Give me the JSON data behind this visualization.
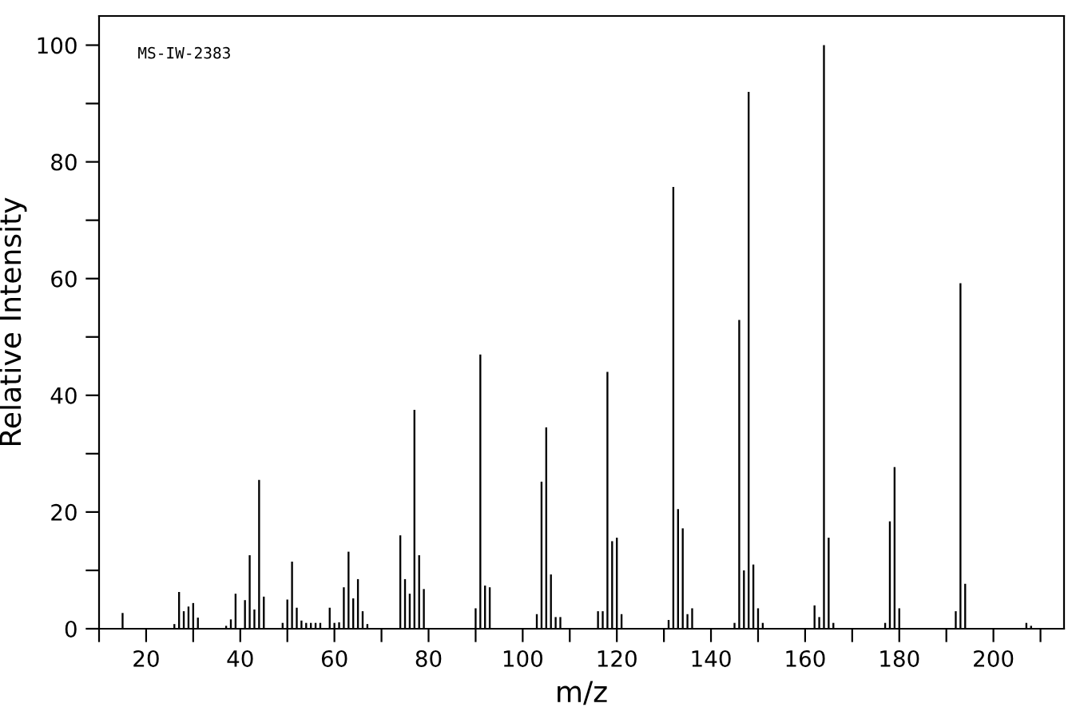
{
  "chart_data": {
    "type": "bar",
    "xlabel": "m/z",
    "ylabel": "Relative Intensity",
    "annotations": [
      "MS-IW-2383"
    ],
    "color": "#000000",
    "x": [
      15,
      26,
      27,
      28,
      29,
      30,
      31,
      37,
      38,
      39,
      41,
      42,
      43,
      44,
      45,
      49,
      50,
      51,
      52,
      53,
      54,
      55,
      56,
      57,
      59,
      60,
      61,
      62,
      63,
      64,
      65,
      66,
      67,
      74,
      75,
      76,
      77,
      78,
      79,
      90,
      91,
      92,
      93,
      103,
      104,
      105,
      106,
      107,
      108,
      116,
      117,
      118,
      119,
      120,
      121,
      131,
      132,
      133,
      134,
      135,
      136,
      145,
      146,
      147,
      148,
      149,
      150,
      151,
      162,
      163,
      164,
      165,
      166,
      177,
      178,
      179,
      180,
      192,
      193,
      194,
      207,
      208
    ],
    "values": [
      2.7,
      0.8,
      6.3,
      3,
      3.8,
      4.4,
      1.9,
      0.5,
      1.6,
      6,
      4.9,
      12.6,
      3.3,
      25.5,
      5.5,
      1,
      5,
      11.5,
      3.6,
      1.4,
      1,
      1,
      1,
      1,
      3.6,
      1,
      1.1,
      7.1,
      13.2,
      5.2,
      8.5,
      3,
      0.8,
      16,
      8.5,
      6,
      37.5,
      12.6,
      6.8,
      3.5,
      47,
      7.4,
      7.1,
      2.5,
      25.2,
      34.5,
      9.3,
      2,
      2,
      3,
      3,
      44,
      15,
      15.6,
      2.5,
      1.5,
      75.7,
      20.5,
      17.2,
      2.5,
      3.5,
      1,
      52.9,
      10,
      92,
      11,
      3.5,
      1,
      4,
      2,
      100,
      15.6,
      1,
      1,
      18.4,
      27.7,
      3.5,
      3,
      59.2,
      7.7,
      1,
      0.5
    ],
    "xlim": [
      10,
      215
    ],
    "ylim": [
      0,
      105
    ],
    "xticks": [
      {
        "value": 10,
        "label": null
      },
      20,
      {
        "value": 30,
        "label": null
      },
      40,
      {
        "value": 50,
        "label": null
      },
      60,
      {
        "value": 70,
        "label": null
      },
      80,
      {
        "value": 90,
        "label": null
      },
      100,
      {
        "value": 110,
        "label": null
      },
      120,
      {
        "value": 130,
        "label": null
      },
      140,
      {
        "value": 150,
        "label": null
      },
      160,
      {
        "value": 170,
        "label": null
      },
      180,
      {
        "value": 190,
        "label": null
      },
      200,
      {
        "value": 210,
        "label": null
      }
    ],
    "yticks": [
      0,
      {
        "value": 10,
        "label": null
      },
      20,
      {
        "value": 30,
        "label": null
      },
      40,
      {
        "value": 50,
        "label": null
      },
      60,
      {
        "value": 70,
        "label": null
      },
      80,
      {
        "value": 90,
        "label": null
      },
      100
    ],
    "grid": false,
    "legend": false
  }
}
